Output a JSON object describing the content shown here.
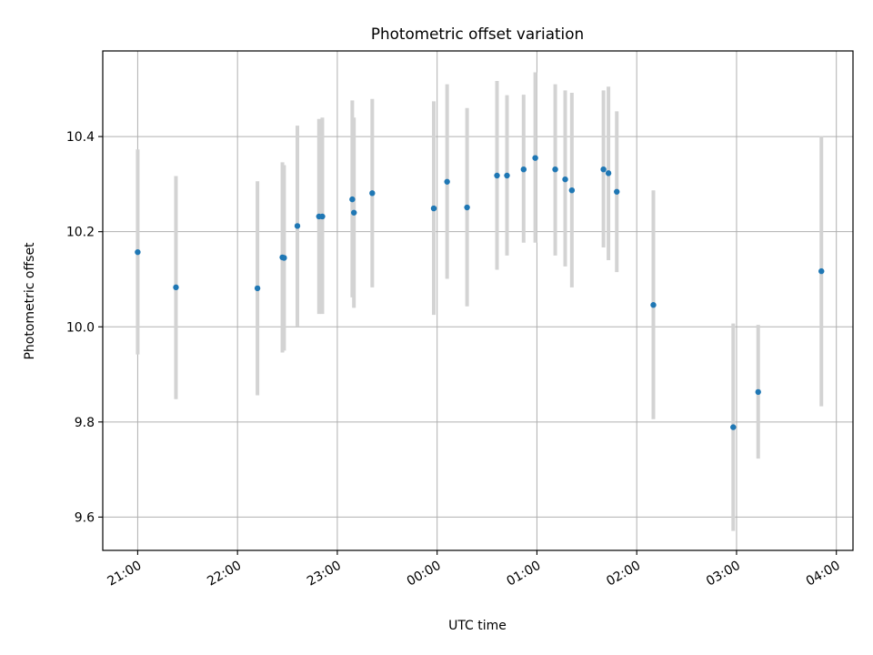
{
  "chart_data": {
    "type": "scatter",
    "title": "Photometric offset variation",
    "xlabel": "UTC time",
    "ylabel": "Photometric offset",
    "x_is_time": true,
    "xlim": [
      "2023-01-01T20:39:00",
      "2023-01-02T04:10:00"
    ],
    "ylim": [
      9.53,
      10.58
    ],
    "x_ticks": [
      {
        "t": "2023-01-01T21:00",
        "label": "21:00"
      },
      {
        "t": "2023-01-01T22:00",
        "label": "22:00"
      },
      {
        "t": "2023-01-01T23:00",
        "label": "23:00"
      },
      {
        "t": "2023-01-02T00:00",
        "label": "00:00"
      },
      {
        "t": "2023-01-02T01:00",
        "label": "01:00"
      },
      {
        "t": "2023-01-02T02:00",
        "label": "02:00"
      },
      {
        "t": "2023-01-02T03:00",
        "label": "03:00"
      },
      {
        "t": "2023-01-02T04:00",
        "label": "04:00"
      }
    ],
    "y_ticks": [
      {
        "v": 9.6,
        "label": "9.6"
      },
      {
        "v": 9.8,
        "label": "9.8"
      },
      {
        "v": 10.0,
        "label": "10.0"
      },
      {
        "v": 10.2,
        "label": "10.2"
      },
      {
        "v": 10.4,
        "label": "10.4"
      }
    ],
    "grid": true,
    "marker_color": "#1f77b4",
    "errorbar_color": "#d3d3d3",
    "points": [
      {
        "t": "2023-01-01T21:00",
        "y": 10.157,
        "lo": 9.942,
        "hi": 10.373
      },
      {
        "t": "2023-01-01T21:23",
        "y": 10.083,
        "lo": 9.848,
        "hi": 10.317
      },
      {
        "t": "2023-01-01T22:12",
        "y": 10.081,
        "lo": 9.856,
        "hi": 10.306
      },
      {
        "t": "2023-01-01T22:27",
        "y": 10.146,
        "lo": 9.946,
        "hi": 10.346
      },
      {
        "t": "2023-01-01T22:28",
        "y": 10.145,
        "lo": 9.95,
        "hi": 10.34
      },
      {
        "t": "2023-01-01T22:36",
        "y": 10.212,
        "lo": 10.001,
        "hi": 10.423
      },
      {
        "t": "2023-01-01T22:49",
        "y": 10.232,
        "lo": 10.027,
        "hi": 10.437
      },
      {
        "t": "2023-01-01T22:51",
        "y": 10.232,
        "lo": 10.027,
        "hi": 10.44
      },
      {
        "t": "2023-01-01T23:09",
        "y": 10.268,
        "lo": 10.062,
        "hi": 10.476
      },
      {
        "t": "2023-01-01T23:10",
        "y": 10.24,
        "lo": 10.04,
        "hi": 10.44
      },
      {
        "t": "2023-01-01T23:21",
        "y": 10.281,
        "lo": 10.083,
        "hi": 10.479
      },
      {
        "t": "2023-01-01T23:58",
        "y": 10.249,
        "lo": 10.025,
        "hi": 10.474
      },
      {
        "t": "2023-01-02T00:06",
        "y": 10.305,
        "lo": 10.101,
        "hi": 10.51
      },
      {
        "t": "2023-01-02T00:18",
        "y": 10.251,
        "lo": 10.043,
        "hi": 10.46
      },
      {
        "t": "2023-01-02T00:36",
        "y": 10.318,
        "lo": 10.12,
        "hi": 10.517
      },
      {
        "t": "2023-01-02T00:42",
        "y": 10.318,
        "lo": 10.15,
        "hi": 10.487
      },
      {
        "t": "2023-01-02T00:52",
        "y": 10.331,
        "lo": 10.177,
        "hi": 10.488
      },
      {
        "t": "2023-01-02T00:59",
        "y": 10.355,
        "lo": 10.177,
        "hi": 10.535
      },
      {
        "t": "2023-01-02T01:11",
        "y": 10.331,
        "lo": 10.15,
        "hi": 10.51
      },
      {
        "t": "2023-01-02T01:17",
        "y": 10.31,
        "lo": 10.127,
        "hi": 10.497
      },
      {
        "t": "2023-01-02T01:21",
        "y": 10.287,
        "lo": 10.083,
        "hi": 10.492
      },
      {
        "t": "2023-01-02T01:40",
        "y": 10.331,
        "lo": 10.167,
        "hi": 10.497
      },
      {
        "t": "2023-01-02T01:43",
        "y": 10.323,
        "lo": 10.14,
        "hi": 10.505
      },
      {
        "t": "2023-01-02T01:48",
        "y": 10.284,
        "lo": 10.115,
        "hi": 10.453
      },
      {
        "t": "2023-01-02T02:10",
        "y": 10.046,
        "lo": 9.806,
        "hi": 10.287
      },
      {
        "t": "2023-01-02T02:58",
        "y": 9.789,
        "lo": 9.571,
        "hi": 10.007
      },
      {
        "t": "2023-01-02T03:13",
        "y": 9.863,
        "lo": 9.723,
        "hi": 10.004
      },
      {
        "t": "2023-01-02T03:51",
        "y": 10.117,
        "lo": 9.833,
        "hi": 10.401
      }
    ]
  }
}
